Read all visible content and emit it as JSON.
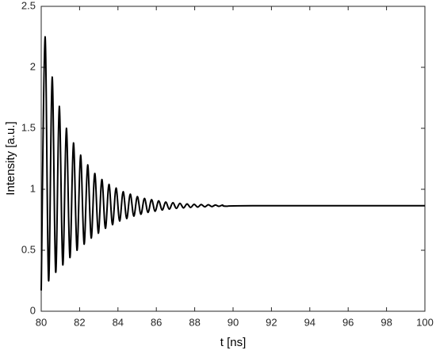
{
  "chart_data": {
    "type": "line",
    "x_label": "t [ns]",
    "y_label": "Intensity [a.u.]",
    "xlim": [
      80,
      100
    ],
    "xticks": [
      80,
      82,
      84,
      86,
      88,
      90,
      92,
      94,
      96,
      98,
      100
    ],
    "ylim": [
      0,
      2.5
    ],
    "yticks": [
      0,
      0.5,
      1,
      1.5,
      2,
      2.5
    ],
    "grid": false,
    "x": [
      80,
      80.2,
      80.385,
      80.57,
      80.755,
      80.94,
      81.125,
      81.31,
      81.495,
      81.68,
      81.865,
      82.05,
      82.235,
      82.42,
      82.605,
      82.79,
      82.975,
      83.16,
      83.345,
      83.53,
      83.715,
      83.9,
      84.085,
      84.27,
      84.455,
      84.64,
      84.825,
      85.01,
      85.195,
      85.38,
      85.565,
      85.75,
      85.935,
      86.12,
      86.305,
      86.49,
      86.675,
      86.86,
      87.045,
      87.23,
      87.415,
      87.6,
      87.785,
      87.97,
      88.155,
      88.34,
      88.525,
      88.71,
      88.895,
      89.08,
      89.265,
      89.45,
      89.635,
      91,
      100
    ],
    "series": [
      {
        "color": "#000000",
        "values": [
          0.17,
          2.25,
          0.25,
          1.92,
          0.32,
          1.68,
          0.38,
          1.5,
          0.44,
          1.38,
          0.5,
          1.28,
          0.55,
          1.2,
          0.6,
          1.13,
          0.64,
          1.08,
          0.68,
          1.04,
          0.71,
          1.01,
          0.74,
          0.98,
          0.76,
          0.96,
          0.78,
          0.94,
          0.795,
          0.925,
          0.81,
          0.915,
          0.82,
          0.905,
          0.83,
          0.895,
          0.837,
          0.89,
          0.843,
          0.885,
          0.847,
          0.88,
          0.851,
          0.877,
          0.854,
          0.875,
          0.856,
          0.873,
          0.858,
          0.871,
          0.86,
          0.87,
          0.861,
          0.865,
          0.865
        ]
      }
    ]
  }
}
